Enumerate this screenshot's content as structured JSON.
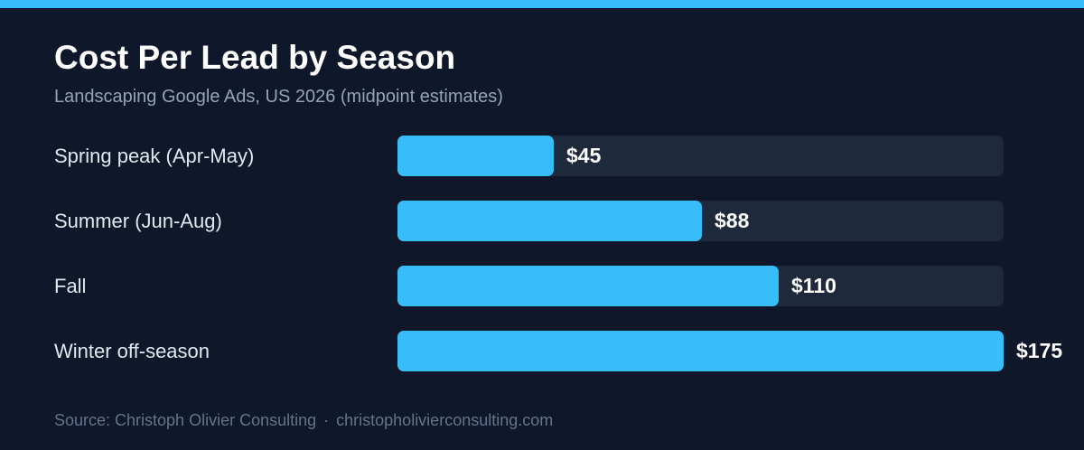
{
  "colors": {
    "background": "#0f172a",
    "accent": "#38bdf8",
    "track": "#1e293b",
    "title": "#ffffff",
    "subtitle": "#94a3b8",
    "footer": "#64748b"
  },
  "footer": {
    "source": "Source: Christoph Olivier Consulting",
    "separator": "·",
    "url": "christopholivierconsulting.com"
  },
  "chart_data": {
    "type": "bar",
    "orientation": "horizontal",
    "title": "Cost Per Lead by Season",
    "subtitle": "Landscaping Google Ads, US 2026 (midpoint estimates)",
    "categories": [
      "Spring peak (Apr-May)",
      "Summer (Jun-Aug)",
      "Fall",
      "Winter off-season"
    ],
    "values": [
      45,
      88,
      110,
      175
    ],
    "value_labels": [
      "$45",
      "$88",
      "$110",
      "$175"
    ],
    "xlim": [
      0,
      175
    ],
    "grid": false,
    "legend": "none"
  }
}
